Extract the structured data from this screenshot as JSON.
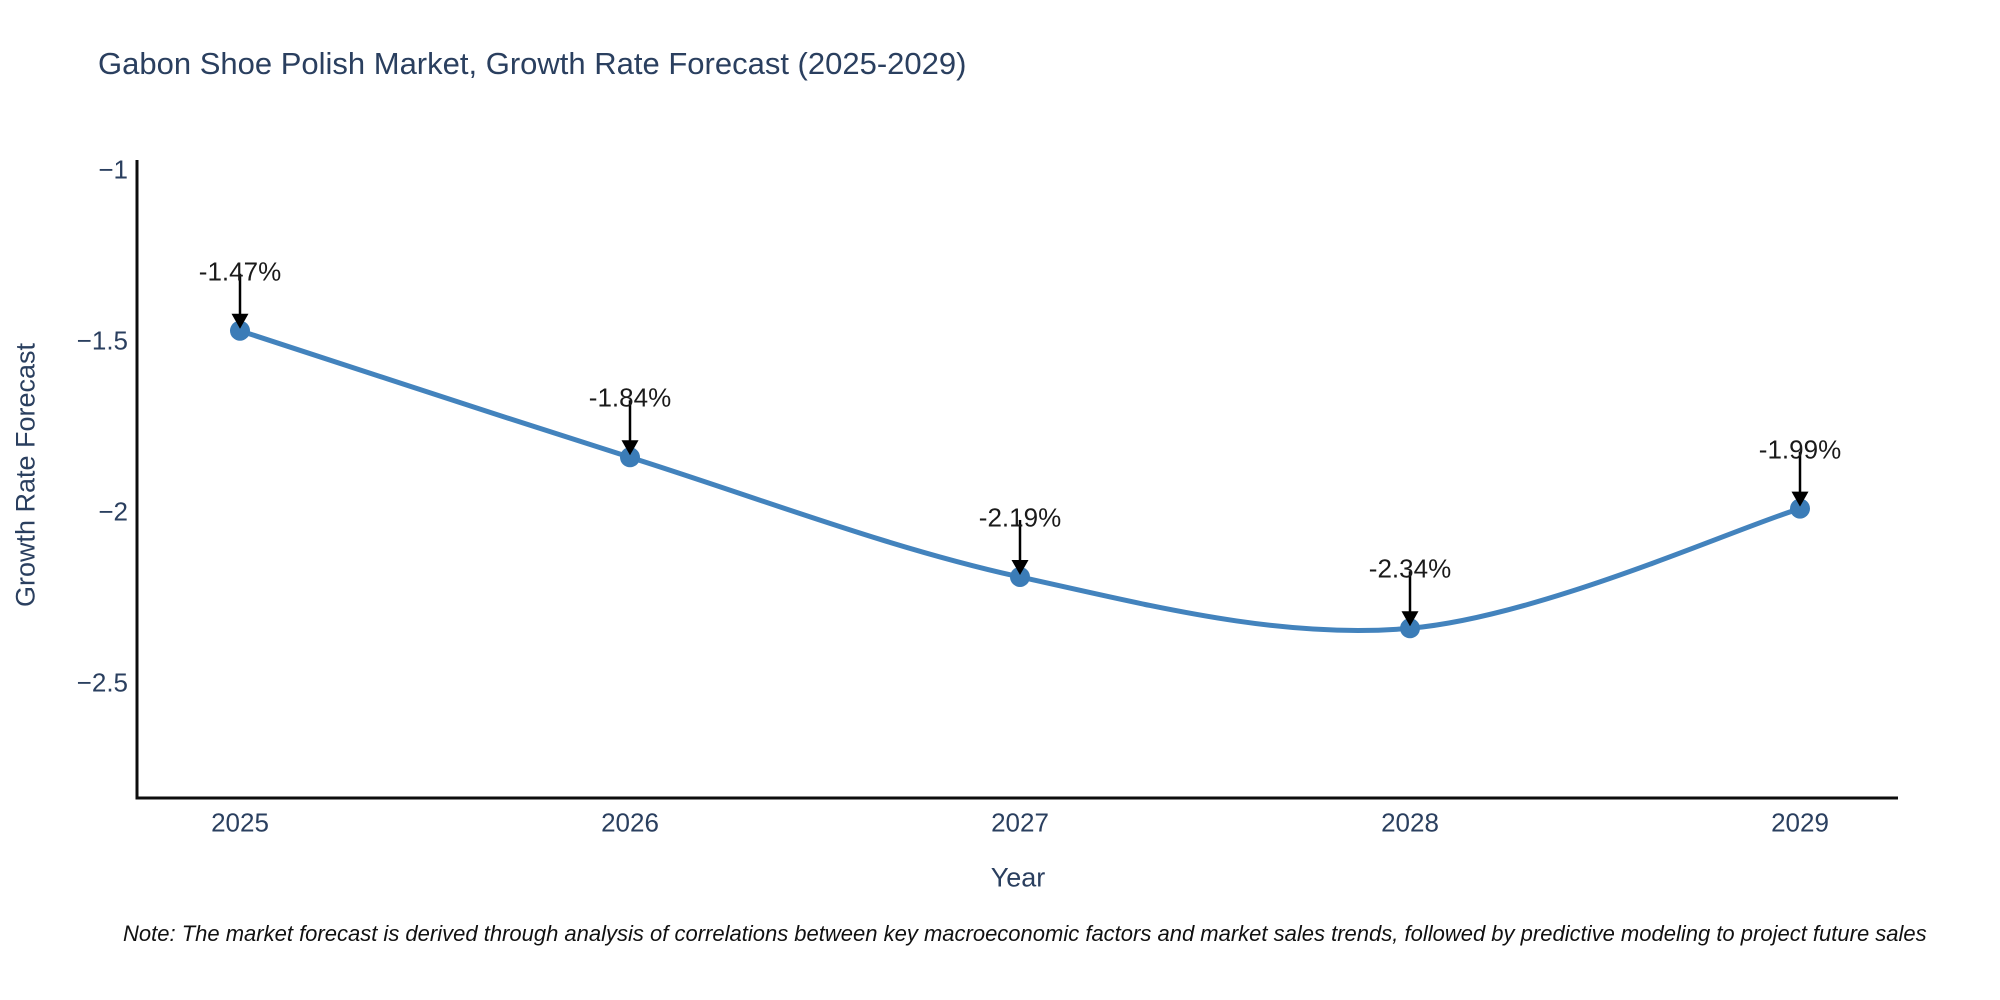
{
  "title": "Gabon Shoe Polish Market, Growth Rate Forecast (2025-2029)",
  "note": "Note: The market forecast is derived through analysis of correlations between key macroeconomic factors and market sales trends, followed by predictive modeling to project future sales",
  "chart_data": {
    "type": "line",
    "line_shape": "spline",
    "title": "Gabon Shoe Polish Market, Growth Rate Forecast (2025-2029)",
    "xlabel": "Year",
    "ylabel": "Growth Rate Forecast",
    "x": [
      2025,
      2026,
      2027,
      2028,
      2029
    ],
    "x_tick_labels": [
      "2025",
      "2026",
      "2027",
      "2028",
      "2029"
    ],
    "series": [
      {
        "name": "Growth Rate Forecast",
        "values": [
          -1.47,
          -1.84,
          -2.19,
          -2.34,
          -1.99
        ]
      }
    ],
    "point_labels": [
      "-1.47%",
      "-1.84%",
      "-2.19%",
      "-2.34%",
      "-1.99%"
    ],
    "y_tick_labels": [
      "−1",
      "−1.5",
      "−2",
      "−2.5"
    ],
    "y_tick_values": [
      -1,
      -1.5,
      -2,
      -2.5
    ],
    "ylim": [
      -2.84,
      -0.97
    ],
    "grid": false,
    "legend_position": "none",
    "annotations_have_arrows": true,
    "colors": {
      "line": "#4383bd",
      "marker": "#3b7cb7",
      "axis": "#0d0d0d",
      "text": "#2a3f5f",
      "annotation_text": "#1a1a1a",
      "arrow": "#000000",
      "background": "#ffffff"
    }
  }
}
